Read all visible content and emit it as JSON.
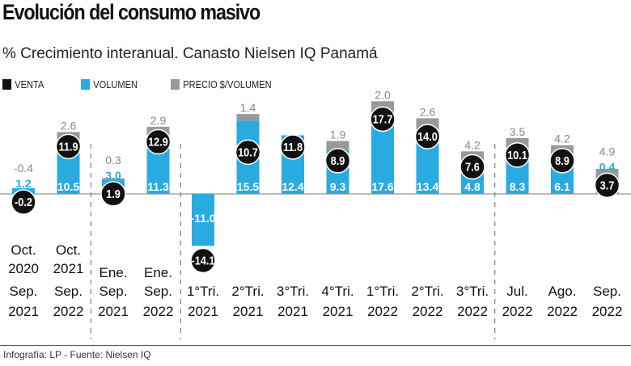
{
  "chart_data": {
    "type": "bar",
    "title": "Evolución del consumo masivo",
    "subtitle": "% Crecimiento interanual. Canasto Nielsen IQ Panamá",
    "legend": {
      "placement": "top-left"
    },
    "colors": {
      "venta": "#111111",
      "volumen": "#29abe2",
      "precio": "#999999"
    },
    "series_names": {
      "venta": "VENTA",
      "volumen": "VOLUMEN",
      "precio": "PRECIO $/VOLUMEN"
    },
    "categories": [
      [
        "Oct.",
        "2020",
        "Sep.",
        "2021"
      ],
      [
        "Oct.",
        "2021",
        "Sep.",
        "2022"
      ],
      [
        "Ene.",
        "Sep.",
        "2021"
      ],
      [
        "Ene.",
        "Sep.",
        "2022"
      ],
      [
        "1°Tri.",
        "2021"
      ],
      [
        "2°Tri.",
        "2021"
      ],
      [
        "3°Tri.",
        "2021"
      ],
      [
        "4°Tri.",
        "2021"
      ],
      [
        "1°Tri.",
        "2022"
      ],
      [
        "2°Tri.",
        "2022"
      ],
      [
        "3°Tri.",
        "2022"
      ],
      [
        "Jul.",
        "2022"
      ],
      [
        "Ago.",
        "2022"
      ],
      [
        "Sep.",
        "2022"
      ]
    ],
    "venta": [
      -0.2,
      11.9,
      1.9,
      12.9,
      -14.1,
      10.7,
      11.8,
      8.9,
      17.7,
      14.0,
      7.6,
      10.1,
      8.9,
      3.7
    ],
    "volumen": [
      1.2,
      10.5,
      3.0,
      11.3,
      -11.0,
      15.5,
      12.4,
      9.3,
      17.6,
      13.4,
      4.8,
      8.3,
      6.1,
      0.4
    ],
    "precio": [
      -0.4,
      2.6,
      0.3,
      2.9,
      null,
      1.4,
      null,
      1.9,
      2.0,
      2.6,
      4.2,
      3.5,
      4.2,
      4.9
    ],
    "group_separators_after": [
      1,
      3,
      10
    ]
  },
  "footer": "Infografía: LP - Fuente: Nielsen IQ"
}
